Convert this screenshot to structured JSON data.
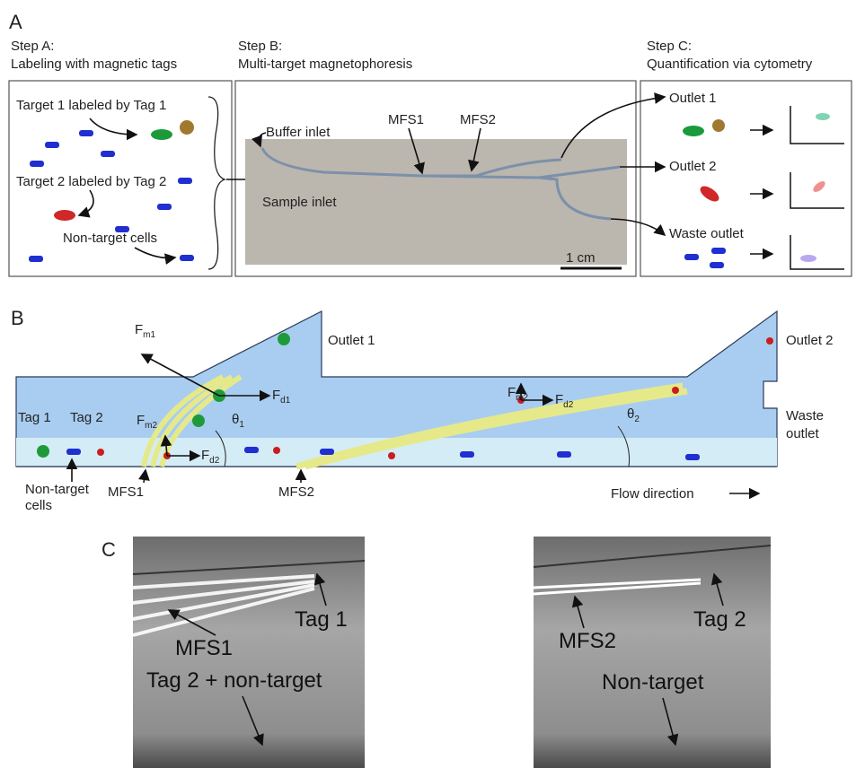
{
  "panel_a": {
    "label": "A",
    "step_a": {
      "title": "Step A:",
      "subtitle": "Labeling with magnetic tags",
      "target1": "Target 1 labeled by Tag 1",
      "target2": "Target 2 labeled by Tag 2",
      "nontarget": "Non-target cells"
    },
    "step_b": {
      "title": "Step B:",
      "subtitle": "Multi-target magnetophoresis",
      "buffer_inlet": "Buffer inlet",
      "mfs1": "MFS1",
      "mfs2": "MFS2",
      "sample_inlet": "Sample inlet",
      "scale": "1 cm"
    },
    "step_c": {
      "title": "Step C:",
      "subtitle": "Quantification via cytometry",
      "outlet1": "Outlet 1",
      "outlet2": "Outlet 2",
      "waste": "Waste outlet"
    }
  },
  "panel_b": {
    "label": "B",
    "outlet1": "Outlet 1",
    "outlet2": "Outlet 2",
    "waste": [
      "Waste",
      "outlet"
    ],
    "fm1": {
      "symbol": "F",
      "sub": "m1"
    },
    "fd1": {
      "symbol": "F",
      "sub": "d1"
    },
    "fm2_a": {
      "symbol": "F",
      "sub": "m2"
    },
    "fd2_a": {
      "symbol": "F",
      "sub": "d2"
    },
    "fm2_b": {
      "symbol": "F",
      "sub": "m2"
    },
    "fd2_b": {
      "symbol": "F",
      "sub": "d2"
    },
    "theta1": {
      "symbol": "θ",
      "sub": "1"
    },
    "theta2": {
      "symbol": "θ",
      "sub": "2"
    },
    "tag1": "Tag 1",
    "tag2": "Tag 2",
    "nontarget": [
      "Non-target",
      "cells"
    ],
    "mfs1": "MFS1",
    "mfs2": "MFS2",
    "flow": "Flow direction"
  },
  "panel_c": {
    "label": "C",
    "left": {
      "tag": "Tag 1",
      "mfs": "MFS1",
      "rest": "Tag 2 + non-target"
    },
    "right": {
      "tag": "Tag 2",
      "mfs": "MFS2",
      "rest": "Non-target"
    }
  }
}
